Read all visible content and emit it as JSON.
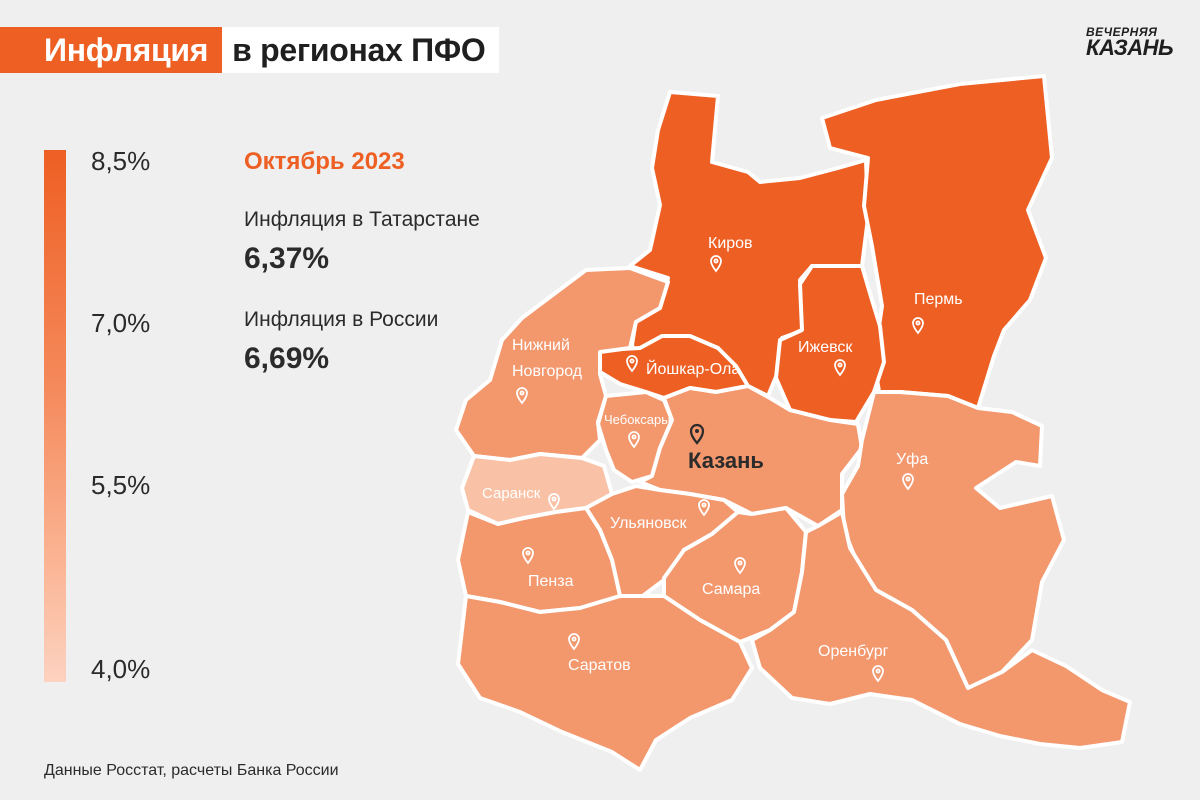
{
  "header": {
    "title_highlight": "Инфляция",
    "title_rest": "в регионах ПФО",
    "logo_line1": "ВЕЧЕРНЯЯ",
    "logo_line2": "КАЗАНЬ"
  },
  "legend": {
    "ticks": [
      "8,5%",
      "7,0%",
      "5,5%",
      "4,0%"
    ],
    "min_value": 4.0,
    "max_value": 8.5
  },
  "info": {
    "month": "Октябрь 2023",
    "tatarstan_label": "Инфляция в Татарстане",
    "tatarstan_value": "6,37%",
    "russia_label": "Инфляция в России",
    "russia_value": "6,69%"
  },
  "regions": [
    {
      "city": "Киров",
      "color": "#ee5f23"
    },
    {
      "city": "Пермь",
      "color": "#ee5f23"
    },
    {
      "city": "Ижевск",
      "color": "#ee5f23"
    },
    {
      "city": "Йошкар-Ола",
      "color": "#ee5f23"
    },
    {
      "city": "Нижний",
      "city2": "Новгород",
      "color": "#f3976d"
    },
    {
      "city": "Чебоксары",
      "color": "#f3976d"
    },
    {
      "city": "Казань",
      "color": "#f3976d"
    },
    {
      "city": "Уфа",
      "color": "#f3976d"
    },
    {
      "city": "Саранск",
      "color": "#f9c2a6"
    },
    {
      "city": "Ульяновск",
      "color": "#f3976d"
    },
    {
      "city": "Пенза",
      "color": "#f3976d"
    },
    {
      "city": "Самара",
      "color": "#f3976d"
    },
    {
      "city": "Саратов",
      "color": "#f3976d"
    },
    {
      "city": "Оренбург",
      "color": "#f3976d"
    }
  ],
  "footer": {
    "source": "Данные Росстат, расчеты Банка России"
  }
}
